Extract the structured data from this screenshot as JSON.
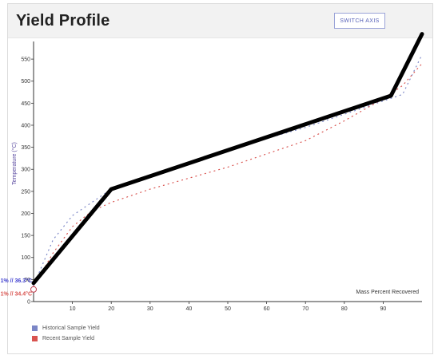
{
  "page": {
    "title": "Yield Profile",
    "switch_label": "SWITCH AXIS"
  },
  "chart_data": {
    "type": "line",
    "xlabel": "Mass Percent Recovered",
    "ylabel": "Temperature (°C)",
    "xlim": [
      0,
      100
    ],
    "ylim": [
      0,
      590
    ],
    "x_ticks": [
      10,
      20,
      30,
      40,
      50,
      60,
      70,
      80,
      90
    ],
    "y_ticks": [
      0,
      50,
      100,
      150,
      200,
      250,
      300,
      350,
      400,
      450,
      500,
      550
    ],
    "x_tick_labels": [
      "10",
      "20",
      "30",
      "40",
      "50",
      "60",
      "70",
      "80",
      "90"
    ],
    "y_tick_labels": [
      "0",
      "50",
      "100",
      "150",
      "200",
      "250",
      "300",
      "350",
      "400",
      "450",
      "500",
      "550"
    ],
    "grid": false,
    "legend": "bottom-left",
    "series": [
      {
        "name": "Historical Sample Yield",
        "color": "#7b86c6",
        "style": "dotted",
        "x": [
          0,
          5,
          10,
          15,
          20,
          30,
          40,
          50,
          60,
          70,
          80,
          90,
          95,
          100
        ],
        "y": [
          36,
          140,
          195,
          225,
          255,
          285,
          315,
          345,
          370,
          395,
          425,
          455,
          470,
          560
        ]
      },
      {
        "name": "Recent Sample Yield",
        "color": "#d9534f",
        "style": "dotted",
        "x": [
          0,
          5,
          10,
          15,
          20,
          30,
          40,
          50,
          60,
          70,
          80,
          90,
          95,
          100
        ],
        "y": [
          34,
          110,
          170,
          205,
          225,
          255,
          280,
          305,
          335,
          365,
          410,
          460,
          490,
          540
        ]
      },
      {
        "name": "",
        "color": "#000000",
        "style": "thick",
        "x": [
          0,
          20,
          92,
          100
        ],
        "y": [
          42,
          255,
          467,
          607
        ]
      }
    ],
    "annotations": [
      {
        "text": "1% // 36.3°C",
        "color": "#3f3fd0",
        "y": 48
      },
      {
        "text": "1% // 34.4°C",
        "color": "#d9534f",
        "y": 18
      }
    ]
  },
  "legend_items": [
    {
      "label": "Historical Sample Yield",
      "color": "#7b86c6"
    },
    {
      "label": "Recent Sample Yield",
      "color": "#d9534f"
    }
  ]
}
